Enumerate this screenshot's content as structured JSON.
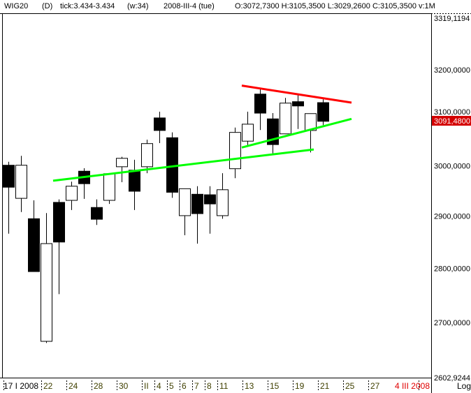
{
  "header": {
    "symbol": "WIG20",
    "period": "(D)",
    "tick": "tick:3.434-3.434",
    "window": "(w:34)",
    "date": "2008-III-4 (tue)",
    "ohlc": "O:3072,7300 H:3105,3500 L:3029,2600 C:3105,3500 v:1M"
  },
  "chart_data": {
    "type": "candlestick",
    "scale": "log",
    "ylim": [
      2602.9244,
      3319.1194
    ],
    "y_ticks": [
      "3319,1194",
      "3200,0000",
      "3100,0000",
      "3000,0000",
      "2900,0000",
      "2800,0000",
      "2700,0000",
      "2602,9244"
    ],
    "y_tick_values": [
      3319.1194,
      3200,
      3100,
      3000,
      2900,
      2800,
      2700,
      2602.9244
    ],
    "last_price_label": "3091,4800",
    "last_price": 3091.48,
    "scale_label": "Log",
    "x_ticks": [
      {
        "date": "2008-01-17",
        "label": "17 I 2008",
        "color": "#000000"
      },
      {
        "date": "2008-01-22",
        "label": "22",
        "color": "#404000"
      },
      {
        "date": "2008-01-24",
        "label": "24",
        "color": "#404000"
      },
      {
        "date": "2008-01-28",
        "label": "28",
        "color": "#404000"
      },
      {
        "date": "2008-01-30",
        "label": "30",
        "color": "#404000"
      },
      {
        "date": "2008-02-01",
        "label": "II",
        "color": "#404000"
      },
      {
        "date": "2008-02-04",
        "label": "4",
        "color": "#404000"
      },
      {
        "date": "2008-02-05",
        "label": "5",
        "color": "#404000"
      },
      {
        "date": "2008-02-06",
        "label": "6",
        "color": "#404000"
      },
      {
        "date": "2008-02-07",
        "label": "7",
        "color": "#404000"
      },
      {
        "date": "2008-02-08",
        "label": "8",
        "color": "#404000"
      },
      {
        "date": "2008-02-11",
        "label": "11",
        "color": "#404000"
      },
      {
        "date": "2008-02-13",
        "label": "13",
        "color": "#404000"
      },
      {
        "date": "2008-02-15",
        "label": "15",
        "color": "#404000"
      },
      {
        "date": "2008-02-19",
        "label": "19",
        "color": "#404000"
      },
      {
        "date": "2008-02-21",
        "label": "21",
        "color": "#404000"
      },
      {
        "date": "2008-02-25",
        "label": "25",
        "color": "#404000"
      },
      {
        "date": "2008-02-27",
        "label": "27",
        "color": "#404000"
      },
      {
        "date": "2008-03-04",
        "label": "4 III 2008",
        "color": "#e00000"
      }
    ],
    "candles": [
      {
        "date": "2008-01-17",
        "o": 3001,
        "h": 3008,
        "l": 2866,
        "c": 2957
      },
      {
        "date": "2008-01-18",
        "o": 2935,
        "h": 3020,
        "l": 2908,
        "c": 3001
      },
      {
        "date": "2008-01-21",
        "o": 2895,
        "h": 2931,
        "l": 2794,
        "c": 2794
      },
      {
        "date": "2008-01-22",
        "o": 2666,
        "h": 2906,
        "l": 2663,
        "c": 2847
      },
      {
        "date": "2008-01-23",
        "o": 2927,
        "h": 2933,
        "l": 2752,
        "c": 2850
      },
      {
        "date": "2008-01-24",
        "o": 2931,
        "h": 2968,
        "l": 2912,
        "c": 2959
      },
      {
        "date": "2008-01-25",
        "o": 2989,
        "h": 2995,
        "l": 2934,
        "c": 2964
      },
      {
        "date": "2008-01-28",
        "o": 2917,
        "h": 2933,
        "l": 2883,
        "c": 2894
      },
      {
        "date": "2008-01-29",
        "o": 2931,
        "h": 2985,
        "l": 2924,
        "c": 2984
      },
      {
        "date": "2008-01-30",
        "o": 2998,
        "h": 3018,
        "l": 2967,
        "c": 3015
      },
      {
        "date": "2008-01-31",
        "o": 2991,
        "h": 3012,
        "l": 2912,
        "c": 2949
      },
      {
        "date": "2008-02-01",
        "o": 2998,
        "h": 3053,
        "l": 2985,
        "c": 3045
      },
      {
        "date": "2008-02-04",
        "o": 3098,
        "h": 3111,
        "l": 3046,
        "c": 3072
      },
      {
        "date": "2008-02-05",
        "o": 3057,
        "h": 3068,
        "l": 2936,
        "c": 2947
      },
      {
        "date": "2008-02-06",
        "o": 2901,
        "h": 2954,
        "l": 2863,
        "c": 2954
      },
      {
        "date": "2008-02-07",
        "o": 2943,
        "h": 2959,
        "l": 2847,
        "c": 2905
      },
      {
        "date": "2008-02-08",
        "o": 2942,
        "h": 2959,
        "l": 2866,
        "c": 2924
      },
      {
        "date": "2008-02-11",
        "o": 2901,
        "h": 2985,
        "l": 2895,
        "c": 2952
      },
      {
        "date": "2008-02-12",
        "o": 2994,
        "h": 3078,
        "l": 2975,
        "c": 3068
      },
      {
        "date": "2008-02-13",
        "o": 3050,
        "h": 3111,
        "l": 3039,
        "c": 3085
      },
      {
        "date": "2008-02-14",
        "o": 3148,
        "h": 3160,
        "l": 3073,
        "c": 3108
      },
      {
        "date": "2008-02-15",
        "o": 3096,
        "h": 3108,
        "l": 3025,
        "c": 3043
      },
      {
        "date": "2008-02-18",
        "o": 3065,
        "h": 3140,
        "l": 3065,
        "c": 3129
      },
      {
        "date": "2008-02-19",
        "o": 3132,
        "h": 3146,
        "l": 3075,
        "c": 3123
      },
      {
        "date": "2008-02-20",
        "o": 3072,
        "h": 3107,
        "l": 3027,
        "c": 3107
      },
      {
        "date": "2008-02-21",
        "o": 3130,
        "h": 3137,
        "l": 3083,
        "c": 3091
      }
    ],
    "trendlines": [
      {
        "color": "#ff0000",
        "from": {
          "date": "2008-02-13",
          "price": 3166
        },
        "to": {
          "date": "2008-02-25",
          "price": 3130
        }
      },
      {
        "color": "#00ff00",
        "from": {
          "date": "2008-01-23",
          "price": 2970
        },
        "to": {
          "date": "2008-02-20",
          "price": 3033
        }
      },
      {
        "color": "#00ff00",
        "from": {
          "date": "2008-02-13",
          "price": 3037
        },
        "to": {
          "date": "2008-02-25",
          "price": 3096
        }
      }
    ]
  },
  "colors": {
    "up_body": "#ffffff",
    "down_body": "#000000",
    "last_price_bg": "#d40000",
    "last_price_text": "#ffffff"
  }
}
